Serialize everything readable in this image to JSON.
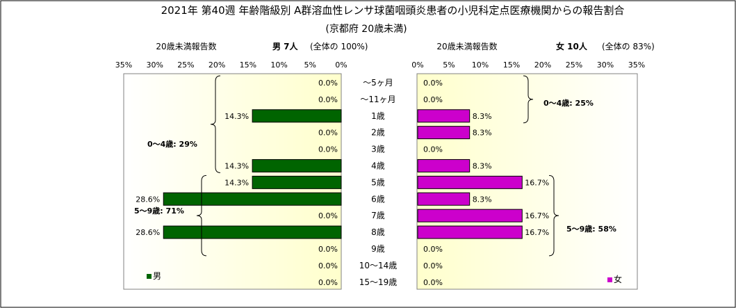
{
  "chart_data": {
    "type": "bar",
    "title": "2021年 第40週 年齢階級別 A群溶血性レンサ球菌咽頭炎患者の小児科定点医療機関からの報告割合",
    "subtitle": "(京都府 20歳未満)",
    "categories": [
      "～5ヶ月",
      "～11ヶ月",
      "1歳",
      "2歳",
      "3歳",
      "4歳",
      "5歳",
      "6歳",
      "7歳",
      "8歳",
      "9歳",
      "10～14歳",
      "15～19歳"
    ],
    "axis_ticks": [
      "0%",
      "5%",
      "10%",
      "15%",
      "20%",
      "25%",
      "30%",
      "35%"
    ],
    "xlim": [
      0,
      35
    ],
    "series": [
      {
        "name": "男",
        "color": "#006400",
        "panel_label": "20歳未満報告数",
        "summary_label": "男 7人",
        "summary_share": "(全体の 100%)",
        "values": [
          0.0,
          0.0,
          14.3,
          0.0,
          0.0,
          14.3,
          14.3,
          28.6,
          0.0,
          28.6,
          0.0,
          0.0,
          0.0
        ],
        "labels": [
          "0.0%",
          "0.0%",
          "14.3%",
          "0.0%",
          "0.0%",
          "14.3%",
          "14.3%",
          "28.6%",
          "0.0%",
          "28.6%",
          "0.0%",
          "0.0%",
          "0.0%"
        ],
        "groups": [
          {
            "label": "0～4歳: 29%",
            "from": 0,
            "to": 5
          },
          {
            "label": "5～9歳: 71%",
            "from": 6,
            "to": 10
          }
        ]
      },
      {
        "name": "女",
        "color": "#CC00CC",
        "panel_label": "20歳未満報告数",
        "summary_label": "女 10人",
        "summary_share": "(全体の 83%)",
        "values": [
          0.0,
          0.0,
          8.3,
          8.3,
          0.0,
          8.3,
          16.7,
          8.3,
          16.7,
          16.7,
          0.0,
          0.0,
          0.0
        ],
        "labels": [
          "0.0%",
          "0.0%",
          "8.3%",
          "8.3%",
          "0.0%",
          "8.3%",
          "16.7%",
          "8.3%",
          "16.7%",
          "16.7%",
          "0.0%",
          "0.0%",
          "0.0%"
        ],
        "groups": [
          {
            "label": "0～4歳: 25%",
            "from": 0,
            "to": 5
          },
          {
            "label": "5～9歳: 58%",
            "from": 6,
            "to": 10
          }
        ]
      }
    ]
  }
}
